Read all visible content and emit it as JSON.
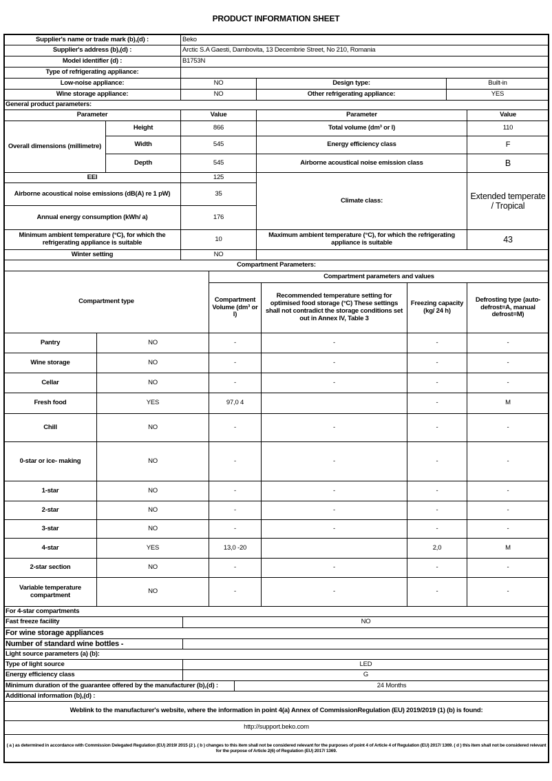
{
  "title": "PRODUCT INFORMATION SHEET",
  "supplier": {
    "name_label": "Supplier's name or trade mark (b),(d) :",
    "name": "Beko",
    "address_label": "Supplier's address (b),(d) :",
    "address": "Arctic S.A  Gaesti, Dambovita, 13 Decembrie Street, No 210, Romania",
    "model_label": "Model identifier (d) :",
    "model": "B1753N",
    "type_label": "Type of refrigerating appliance:"
  },
  "appliance": {
    "low_noise_label": "Low-noise appliance:",
    "low_noise": "NO",
    "design_type_label": "Design type:",
    "design_type": "Built-in",
    "wine_label": "Wine storage appliance:",
    "wine": "NO",
    "other_label": "Other refrigerating appliance:",
    "other": "YES"
  },
  "general": {
    "heading": "General product parameters:",
    "param_header": "Parameter",
    "value_header": "Value",
    "dims_label": "Overall dimensions (millimetre)",
    "height_label": "Height",
    "height": "866",
    "width_label": "Width",
    "width": "545",
    "depth_label": "Depth",
    "depth": "545",
    "total_volume_label": "Total volume (dm³ or l)",
    "total_volume": "110",
    "eec_label": "Energy efficiency class",
    "eec": "F",
    "noise_class_label": "Airborne acoustical noise emission class",
    "noise_class": "B",
    "eei_label": "EEI",
    "eei": "125",
    "noise_label": "Airborne acoustical noise emissions (dB(A) re 1 pW)",
    "noise": "35",
    "annual_label": "Annual energy consumption (kWh/ a)",
    "annual": "176",
    "climate_label": "Climate class:",
    "climate": "Extended temperate / Tropical",
    "min_temp_label": "Minimum ambient temperature (°C), for which the refrigerating appliance is suitable",
    "min_temp": "10",
    "max_temp_label": "Maximum ambient temperature (°C), for which the refrigerating appliance is suitable",
    "max_temp": "43",
    "winter_label": "Winter setting",
    "winter": "NO"
  },
  "compartments": {
    "heading": "Compartment Parameters:",
    "group_header": "Compartment parameters and values",
    "type_header": "Compartment type",
    "volume_header": "Compartment Volume (dm³ or l)",
    "temp_header": "Recommended temperature setting for optimised food storage (°C) These settings shall not contradict the storage conditions set out in Annex IV, Table 3",
    "freezing_header": "Freezing capacity (kg/ 24 h)",
    "defrost_header": "Defrosting type (auto-defrost=A, manual defrost=M)",
    "rows": [
      {
        "name": "Pantry",
        "present": "NO",
        "volume": "-",
        "temp": "-",
        "freezing": "-",
        "defrost": "-"
      },
      {
        "name": "Wine storage",
        "present": "NO",
        "volume": "-",
        "temp": "-",
        "freezing": "-",
        "defrost": "-"
      },
      {
        "name": "Cellar",
        "present": "NO",
        "volume": "-",
        "temp": "-",
        "freezing": "-",
        "defrost": "-"
      },
      {
        "name": "Fresh food",
        "present": "YES",
        "volume": "97,0 4",
        "temp": "",
        "freezing": "-",
        "defrost": "M"
      },
      {
        "name": "Chill",
        "present": "NO",
        "volume": "-",
        "temp": "-",
        "freezing": "-",
        "defrost": "-"
      },
      {
        "name": "0-star or ice- making",
        "present": "NO",
        "volume": "-",
        "temp": "-",
        "freezing": "-",
        "defrost": "-"
      },
      {
        "name": "1-star",
        "present": "NO",
        "volume": "-",
        "temp": "-",
        "freezing": "-",
        "defrost": "-"
      },
      {
        "name": "2-star",
        "present": "NO",
        "volume": "-",
        "temp": "-",
        "freezing": "-",
        "defrost": "-"
      },
      {
        "name": "3-star",
        "present": "NO",
        "volume": "-",
        "temp": "-",
        "freezing": "-",
        "defrost": "-"
      },
      {
        "name": "4-star",
        "present": "YES",
        "volume": "13,0 -20",
        "temp": "",
        "freezing": "2,0",
        "defrost": "M"
      },
      {
        "name": "2-star section",
        "present": "NO",
        "volume": "-",
        "temp": "-",
        "freezing": "-",
        "defrost": "-"
      },
      {
        "name": "Variable temperature compartment",
        "present": "NO",
        "volume": "-",
        "temp": "-",
        "freezing": "-",
        "defrost": "-"
      }
    ]
  },
  "four_star": {
    "heading": "For 4-star compartments",
    "fast_freeze_label": "Fast freeze facility",
    "fast_freeze": "NO"
  },
  "wine_storage": {
    "heading": "For wine storage appliances",
    "bottles_label": "Number of standard wine bottles -"
  },
  "light": {
    "heading": "Light source parameters (a) (b):",
    "type_label": "Type of light source",
    "type": "LED",
    "eec_label": "Energy efficiency class",
    "eec": "G"
  },
  "guarantee_label": "Minimum duration of the guarantee offered by the manufacturer (b),(d) :",
  "guarantee": "24 Months",
  "additional_label": "Additional information (b),(d) :",
  "weblink_text": "Weblink to the manufacturer's website, where the information in point 4(a) Annex of CommissionRegulation (EU) 2019/2019 (1) (b) is found:",
  "url": "http://support.beko.com",
  "footnote": "( a ) as determined in accordance with Commission Delegated Regulation (EU) 2019/ 2015 (2 ). ( b ) changes to this item shall not be considered relevant for the purposes of point 4 of Article 4 of Regulation (EU) 2017/ 1369. ( d ) this item shall not be considered relevant for the purpose of Article 2(6) of Regulation (EU) 2017/ 1369."
}
